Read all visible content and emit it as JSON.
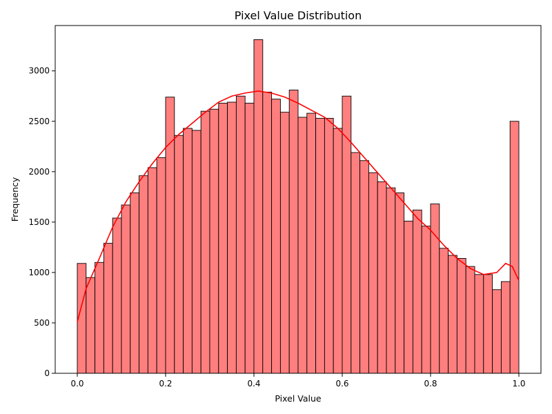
{
  "chart_data": {
    "type": "bar",
    "title": "Pixel Value Distribution",
    "xlabel": "Pixel Value",
    "ylabel": "Frequency",
    "xlim": [
      -0.05,
      1.05
    ],
    "ylim": [
      0,
      3450
    ],
    "x_ticks": [
      0.0,
      0.2,
      0.4,
      0.6,
      0.8,
      1.0
    ],
    "x_tick_labels": [
      "0.0",
      "0.2",
      "0.4",
      "0.6",
      "0.8",
      "1.0"
    ],
    "y_ticks": [
      0,
      500,
      1000,
      1500,
      2000,
      2500,
      3000
    ],
    "y_tick_labels": [
      "0",
      "500",
      "1000",
      "1500",
      "2000",
      "2500",
      "3000"
    ],
    "grid": false,
    "bar_color": "#ff7f7f",
    "bar_edge_color": "#000000",
    "kde_color": "#ff0000",
    "bins": {
      "start": 0.0,
      "end": 1.0,
      "count": 50
    },
    "values": [
      1090,
      950,
      1100,
      1290,
      1540,
      1670,
      1790,
      1960,
      2040,
      2140,
      2740,
      2360,
      2430,
      2410,
      2600,
      2620,
      2680,
      2690,
      2750,
      2680,
      3310,
      2790,
      2720,
      2590,
      2810,
      2540,
      2580,
      2530,
      2530,
      2430,
      2750,
      2190,
      2110,
      1990,
      1900,
      1840,
      1790,
      1510,
      1620,
      1460,
      1680,
      1240,
      1170,
      1140,
      1060,
      980,
      980,
      830,
      910,
      2500
    ],
    "kde": {
      "x": [
        0.0,
        0.02,
        0.05,
        0.08,
        0.11,
        0.14,
        0.17,
        0.2,
        0.23,
        0.26,
        0.29,
        0.32,
        0.35,
        0.38,
        0.41,
        0.44,
        0.47,
        0.5,
        0.53,
        0.56,
        0.59,
        0.62,
        0.65,
        0.68,
        0.71,
        0.74,
        0.77,
        0.8,
        0.83,
        0.86,
        0.89,
        0.92,
        0.95,
        0.97,
        0.985,
        1.0
      ],
      "y": [
        510,
        840,
        1140,
        1450,
        1700,
        1900,
        2080,
        2240,
        2370,
        2480,
        2590,
        2690,
        2750,
        2780,
        2800,
        2780,
        2740,
        2680,
        2610,
        2540,
        2430,
        2290,
        2140,
        1990,
        1840,
        1690,
        1540,
        1420,
        1270,
        1140,
        1040,
        980,
        1000,
        1090,
        1060,
        920
      ]
    }
  }
}
